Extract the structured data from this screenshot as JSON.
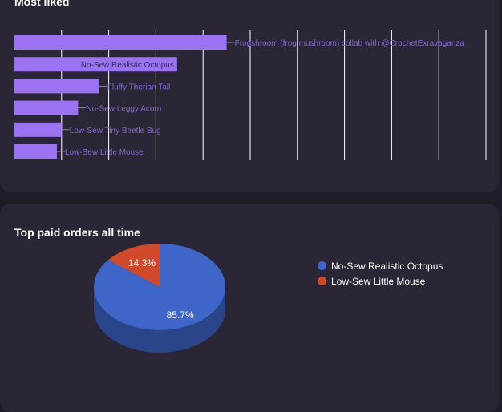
{
  "charts": {
    "liked": {
      "title": "Most liked"
    },
    "orders": {
      "title": "Top paid orders all time"
    }
  },
  "chart_data": [
    {
      "type": "bar",
      "orientation": "horizontal",
      "title": "Most liked",
      "categories": [
        "Frogshroom (frog mushroom) collab with @CrochetExravaganza",
        "No-Sew Realistic Octopus",
        "Fluffy Therian Tail",
        "No-Sew Leggy Acorn",
        "Low-Sew Tiny Beetle Bug",
        "Low-Sew Little Mouse"
      ],
      "values": [
        45,
        34.5,
        18,
        13.5,
        10,
        9
      ],
      "xlim": [
        0,
        100
      ],
      "grid": true,
      "color": "#9b73f2"
    },
    {
      "type": "pie",
      "title": "Top paid orders all time",
      "labels": [
        "No-Sew Realistic Octopus",
        "Low-Sew Little Mouse"
      ],
      "values": [
        85.7,
        14.3
      ],
      "value_labels": [
        "85.7%",
        "14.3%"
      ],
      "colors": [
        "#3e66c9",
        "#d1492b"
      ],
      "legend": "right"
    }
  ]
}
